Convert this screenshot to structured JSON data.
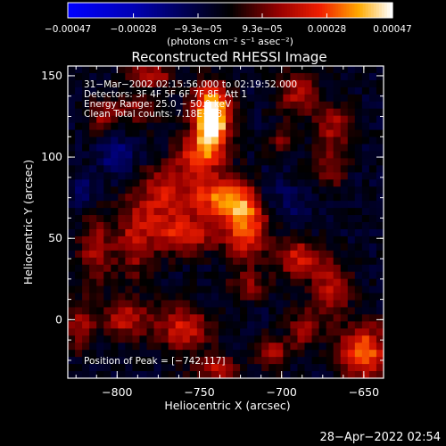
{
  "chart_data": {
    "type": "heatmap",
    "title": "Reconstructed RHESSI Image",
    "xlabel": "Heliocentric X (arcsec)",
    "ylabel": "Heliocentric Y (arcsec)",
    "xlim": [
      -830,
      -638
    ],
    "ylim": [
      -36,
      156
    ],
    "x_ticks": [
      -800,
      -750,
      -700,
      -650
    ],
    "x_tick_labels": [
      "−800",
      "−750",
      "−700",
      "−650"
    ],
    "y_ticks": [
      0,
      50,
      100,
      150
    ],
    "y_tick_labels": [
      "0",
      "50",
      "100",
      "150"
    ],
    "colorbar": {
      "min": -0.00047,
      "max": 0.00047,
      "ticks": [
        -0.00047,
        -0.00028,
        -9.3e-05,
        9.3e-05,
        0.00028,
        0.00047
      ],
      "tick_labels": [
        "−0.00047",
        "−0.00028",
        "−9.3e−05",
        "9.3e−05",
        "0.00028",
        "0.00047"
      ],
      "units_label": "(photons cm⁻² s⁻¹ asec⁻²)"
    },
    "info_lines": [
      "31−Mar−2002 02:15:56.000 to 02:19:52.000",
      "Detectors: 3F 4F 5F 6F 7F 8F, Att 1",
      "Energy Range: 25.0 − 50.0 keV",
      "Clean    Total counts: 7.18E+03"
    ],
    "peak_label": "Position of Peak = [−742,117]",
    "peak": [
      -742,
      117
    ],
    "sources": [
      {
        "x": -742,
        "y": 117,
        "amp": 1.0,
        "sx": 7,
        "sy": 12
      },
      {
        "x": -743,
        "y": 133,
        "amp": 0.7,
        "sx": 8,
        "sy": 10
      },
      {
        "x": -752,
        "y": 100,
        "amp": 0.55,
        "sx": 9,
        "sy": 10
      },
      {
        "x": -740,
        "y": 75,
        "amp": 0.7,
        "sx": 14,
        "sy": 9
      },
      {
        "x": -722,
        "y": 60,
        "amp": 0.8,
        "sx": 9,
        "sy": 16
      },
      {
        "x": -757,
        "y": 52,
        "amp": 0.55,
        "sx": 12,
        "sy": 8
      },
      {
        "x": -773,
        "y": 78,
        "amp": 0.5,
        "sx": 10,
        "sy": 20
      },
      {
        "x": -790,
        "y": 50,
        "amp": 0.45,
        "sx": 8,
        "sy": 18
      },
      {
        "x": -813,
        "y": 42,
        "amp": 0.45,
        "sx": 7,
        "sy": 16
      },
      {
        "x": -808,
        "y": 125,
        "amp": 0.4,
        "sx": 7,
        "sy": 7
      },
      {
        "x": -788,
        "y": 130,
        "amp": 0.35,
        "sx": 8,
        "sy": 6
      },
      {
        "x": -780,
        "y": 150,
        "amp": 0.5,
        "sx": 10,
        "sy": 5
      },
      {
        "x": -690,
        "y": 140,
        "amp": 0.45,
        "sx": 9,
        "sy": 10
      },
      {
        "x": -668,
        "y": 120,
        "amp": 0.4,
        "sx": 8,
        "sy": 8
      },
      {
        "x": -670,
        "y": 95,
        "amp": 0.35,
        "sx": 7,
        "sy": 12
      },
      {
        "x": -700,
        "y": 110,
        "amp": 0.3,
        "sx": 6,
        "sy": 6
      },
      {
        "x": -690,
        "y": 38,
        "amp": 0.55,
        "sx": 10,
        "sy": 8
      },
      {
        "x": -670,
        "y": 20,
        "amp": 0.5,
        "sx": 8,
        "sy": 12
      },
      {
        "x": -650,
        "y": -20,
        "amp": 0.8,
        "sx": 10,
        "sy": 12
      },
      {
        "x": -685,
        "y": -5,
        "amp": 0.45,
        "sx": 7,
        "sy": 8
      },
      {
        "x": -705,
        "y": -20,
        "amp": 0.4,
        "sx": 8,
        "sy": 7
      },
      {
        "x": -760,
        "y": -5,
        "amp": 0.55,
        "sx": 12,
        "sy": 10
      },
      {
        "x": -795,
        "y": 0,
        "amp": 0.5,
        "sx": 10,
        "sy": 8
      },
      {
        "x": -823,
        "y": -5,
        "amp": 0.45,
        "sx": 6,
        "sy": 10
      },
      {
        "x": -740,
        "y": -30,
        "amp": 0.45,
        "sx": 10,
        "sy": 6
      },
      {
        "x": -720,
        "y": 20,
        "amp": 0.35,
        "sx": 8,
        "sy": 6
      },
      {
        "x": -800,
        "y": 100,
        "amp": -0.35,
        "sx": 7,
        "sy": 8
      },
      {
        "x": -775,
        "y": 100,
        "amp": -0.25,
        "sx": 8,
        "sy": 8
      },
      {
        "x": -710,
        "y": 80,
        "amp": -0.2,
        "sx": 9,
        "sy": 9
      },
      {
        "x": -820,
        "y": 80,
        "amp": -0.2,
        "sx": 6,
        "sy": 8
      },
      {
        "x": -690,
        "y": 70,
        "amp": -0.15,
        "sx": 8,
        "sy": 8
      }
    ]
  },
  "footer": {
    "date": "28−Apr−2022 02:54"
  }
}
